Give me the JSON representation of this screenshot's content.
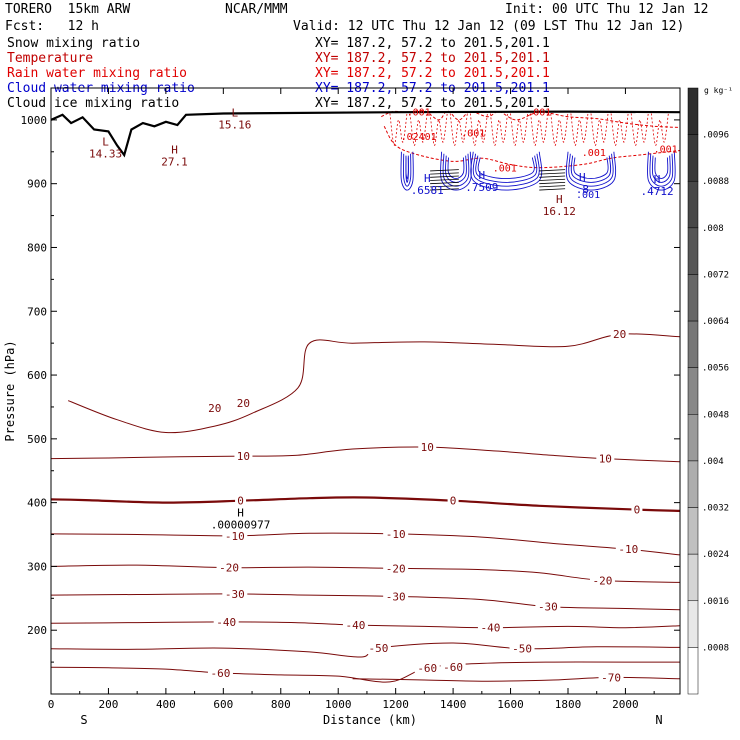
{
  "header": {
    "run_name": "TORERO  15km ARW",
    "center": "NCAR/MMM",
    "init": "Init: 00 UTC Thu 12 Jan 12",
    "fcst": "Fcst:   12 h",
    "valid": "Valid: 12 UTC Thu 12 Jan 12 (09 LST Thu 12 Jan 12)"
  },
  "fields": [
    {
      "name": "Snow mixing ratio",
      "xy": "XY= 187.2, 57.2 to 201.5,201.1",
      "color": "#000000"
    },
    {
      "name": "Temperature",
      "xy": "XY= 187.2, 57.2 to 201.5,201.1",
      "color": "#c00000"
    },
    {
      "name": "Rain water mixing ratio",
      "xy": "XY= 187.2, 57.2 to 201.5,201.1",
      "color": "#e00000"
    },
    {
      "name": "Cloud water mixing ratio",
      "xy": "XY= 187.2, 57.2 to 201.5,201.1",
      "color": "#0000cc"
    },
    {
      "name": "Cloud ice mixing ratio",
      "xy": "XY= 187.2, 57.2 to 201.5,201.1",
      "color": "#000000"
    }
  ],
  "chart_data": {
    "type": "cross-section contour",
    "x_axis": {
      "label": "Distance (km)",
      "range": [
        0,
        2190
      ],
      "ticks": [
        0,
        200,
        400,
        600,
        800,
        1000,
        1200,
        1400,
        1600,
        1800,
        2000
      ],
      "end_labels": {
        "left": "S",
        "right": "N"
      }
    },
    "y_axis": {
      "label": "Pressure (hPa)",
      "range": [
        1050,
        100
      ],
      "ticks": [
        200,
        300,
        400,
        500,
        600,
        700,
        800,
        900,
        1000
      ]
    },
    "colorbar": {
      "unit": "g kg⁻¹",
      "labels": [
        ".0096",
        ".0088",
        ".008",
        ".0072",
        ".0064",
        ".0056",
        ".0048",
        ".004",
        ".0032",
        ".0024",
        ".0016",
        ".0008"
      ],
      "colors": [
        "#2e2e2e",
        "#3a3a3a",
        "#484848",
        "#575757",
        "#676767",
        "#777777",
        "#888888",
        "#9a9a9a",
        "#adadad",
        "#c0c0c0",
        "#d5d5d5",
        "#e8e8e8",
        "#ffffff"
      ]
    },
    "temperature_contours": [
      {
        "level": -70,
        "label_points": [
          [
            1950,
            126
          ]
        ],
        "points": [
          [
            1050,
            124
          ],
          [
            1300,
            122
          ],
          [
            1500,
            120
          ],
          [
            1750,
            122
          ],
          [
            1950,
            126
          ],
          [
            2190,
            124
          ]
        ]
      },
      {
        "level": -60,
        "label_points": [
          [
            590,
            133
          ],
          [
            1310,
            141
          ],
          [
            1400,
            142
          ]
        ],
        "points": [
          [
            0,
            142
          ],
          [
            200,
            141
          ],
          [
            400,
            139
          ],
          [
            590,
            133
          ],
          [
            800,
            130
          ],
          [
            1000,
            128
          ],
          [
            1180,
            119
          ],
          [
            1310,
            141
          ],
          [
            1500,
            148
          ],
          [
            1750,
            150
          ],
          [
            2000,
            150
          ],
          [
            2190,
            150
          ]
        ]
      },
      {
        "level": -50,
        "label_points": [
          [
            1140,
            172
          ],
          [
            1640,
            171
          ]
        ],
        "points": [
          [
            0,
            171
          ],
          [
            300,
            170
          ],
          [
            600,
            172
          ],
          [
            900,
            166
          ],
          [
            1080,
            158
          ],
          [
            1140,
            172
          ],
          [
            1400,
            180
          ],
          [
            1640,
            171
          ],
          [
            1900,
            174
          ],
          [
            2190,
            173
          ]
        ]
      },
      {
        "level": -40,
        "label_points": [
          [
            610,
            213
          ],
          [
            1060,
            208
          ],
          [
            1530,
            204
          ]
        ],
        "points": [
          [
            0,
            211
          ],
          [
            300,
            212
          ],
          [
            610,
            213
          ],
          [
            850,
            212
          ],
          [
            1060,
            208
          ],
          [
            1300,
            206
          ],
          [
            1530,
            204
          ],
          [
            1800,
            206
          ],
          [
            2000,
            204
          ],
          [
            2190,
            207
          ]
        ]
      },
      {
        "level": -30,
        "label_points": [
          [
            640,
            257
          ],
          [
            1200,
            253
          ],
          [
            1730,
            237
          ]
        ],
        "points": [
          [
            0,
            255
          ],
          [
            300,
            256
          ],
          [
            640,
            257
          ],
          [
            900,
            255
          ],
          [
            1200,
            253
          ],
          [
            1500,
            248
          ],
          [
            1730,
            237
          ],
          [
            2000,
            234
          ],
          [
            2190,
            232
          ]
        ]
      },
      {
        "level": -20,
        "label_points": [
          [
            620,
            298
          ],
          [
            1200,
            297
          ],
          [
            1920,
            278
          ]
        ],
        "points": [
          [
            0,
            300
          ],
          [
            300,
            302
          ],
          [
            620,
            298
          ],
          [
            900,
            299
          ],
          [
            1200,
            297
          ],
          [
            1500,
            295
          ],
          [
            1700,
            290
          ],
          [
            1920,
            278
          ],
          [
            2190,
            275
          ]
        ]
      },
      {
        "level": -10,
        "label_points": [
          [
            640,
            348
          ],
          [
            1200,
            351
          ],
          [
            2010,
            327
          ]
        ],
        "points": [
          [
            0,
            351
          ],
          [
            300,
            350
          ],
          [
            640,
            348
          ],
          [
            900,
            352
          ],
          [
            1200,
            351
          ],
          [
            1500,
            346
          ],
          [
            1750,
            336
          ],
          [
            2010,
            327
          ],
          [
            2190,
            318
          ]
        ]
      },
      {
        "level": 0,
        "thick": true,
        "label_points": [
          [
            660,
            403
          ],
          [
            1400,
            403
          ],
          [
            2040,
            389
          ]
        ],
        "points": [
          [
            0,
            405
          ],
          [
            120,
            404
          ],
          [
            400,
            400
          ],
          [
            660,
            403
          ],
          [
            900,
            407
          ],
          [
            1100,
            408
          ],
          [
            1400,
            403
          ],
          [
            1700,
            395
          ],
          [
            2040,
            389
          ],
          [
            2190,
            387
          ]
        ]
      },
      {
        "level": 10,
        "label_points": [
          [
            670,
            473
          ],
          [
            1310,
            487
          ],
          [
            1930,
            469
          ]
        ],
        "points": [
          [
            0,
            469
          ],
          [
            200,
            470
          ],
          [
            450,
            472
          ],
          [
            670,
            473
          ],
          [
            850,
            474
          ],
          [
            1050,
            484
          ],
          [
            1310,
            487
          ],
          [
            1550,
            481
          ],
          [
            1750,
            474
          ],
          [
            1930,
            469
          ],
          [
            2190,
            464
          ]
        ]
      },
      {
        "level": 20,
        "label_points": [
          [
            570,
            548
          ],
          [
            670,
            556
          ],
          [
            1980,
            664
          ]
        ],
        "points": [
          [
            60,
            560
          ],
          [
            230,
            530
          ],
          [
            400,
            510
          ],
          [
            570,
            520
          ],
          [
            700,
            540
          ],
          [
            860,
            580
          ],
          [
            900,
            650
          ],
          [
            1050,
            650
          ],
          [
            1300,
            652
          ],
          [
            1550,
            648
          ],
          [
            1800,
            645
          ],
          [
            1980,
            664
          ],
          [
            2190,
            660
          ]
        ]
      }
    ],
    "extrema": [
      {
        "kind": "H",
        "x": 660,
        "p": 378,
        "value": ".00000977"
      },
      {
        "kind": "L",
        "x": 190,
        "p": 960,
        "value": "14.33"
      },
      {
        "kind": "H",
        "x": 430,
        "p": 947,
        "value": "27.1"
      },
      {
        "kind": "L",
        "x": 640,
        "p": 1005,
        "value": "15.16"
      },
      {
        "kind": "H",
        "x": 1770,
        "p": 870,
        "value": "16.12"
      },
      {
        "kind": "H",
        "x": 1310,
        "p": 903,
        "value": ".6581"
      },
      {
        "kind": "H",
        "x": 1500,
        "p": 907,
        "value": ".7509"
      },
      {
        "kind": "H",
        "x": 1850,
        "p": 904,
        "value": ".8"
      },
      {
        "kind": "H",
        "x": 2110,
        "p": 901,
        "value": ".4712"
      }
    ],
    "mixing_ratio_labels": [
      {
        "x": 1870,
        "p": 884,
        "value": ".001",
        "color": "blue"
      },
      {
        "x": 1580,
        "p": 925,
        "value": ".001",
        "color": "red"
      },
      {
        "x": 1890,
        "p": 950,
        "value": ".001",
        "color": "red"
      },
      {
        "x": 2140,
        "p": 955,
        "value": ".001",
        "color": "red"
      },
      {
        "x": 1280,
        "p": 975,
        "value": ".02401",
        "color": "red"
      },
      {
        "x": 1470,
        "p": 980,
        "value": ".001",
        "color": "red"
      },
      {
        "x": 1280,
        "p": 1013,
        "value": ".001",
        "color": "red"
      },
      {
        "x": 1700,
        "p": 1013,
        "value": ".001",
        "color": "red"
      }
    ],
    "terrain": [
      [
        0,
        1000
      ],
      [
        40,
        1008
      ],
      [
        70,
        995
      ],
      [
        110,
        1004
      ],
      [
        150,
        985
      ],
      [
        200,
        982
      ],
      [
        230,
        960
      ],
      [
        255,
        945
      ],
      [
        280,
        985
      ],
      [
        320,
        995
      ],
      [
        360,
        990
      ],
      [
        400,
        997
      ],
      [
        440,
        992
      ],
      [
        470,
        1008
      ],
      [
        600,
        1010
      ],
      [
        1200,
        1012
      ],
      [
        1800,
        1013
      ],
      [
        2190,
        1012
      ]
    ]
  }
}
